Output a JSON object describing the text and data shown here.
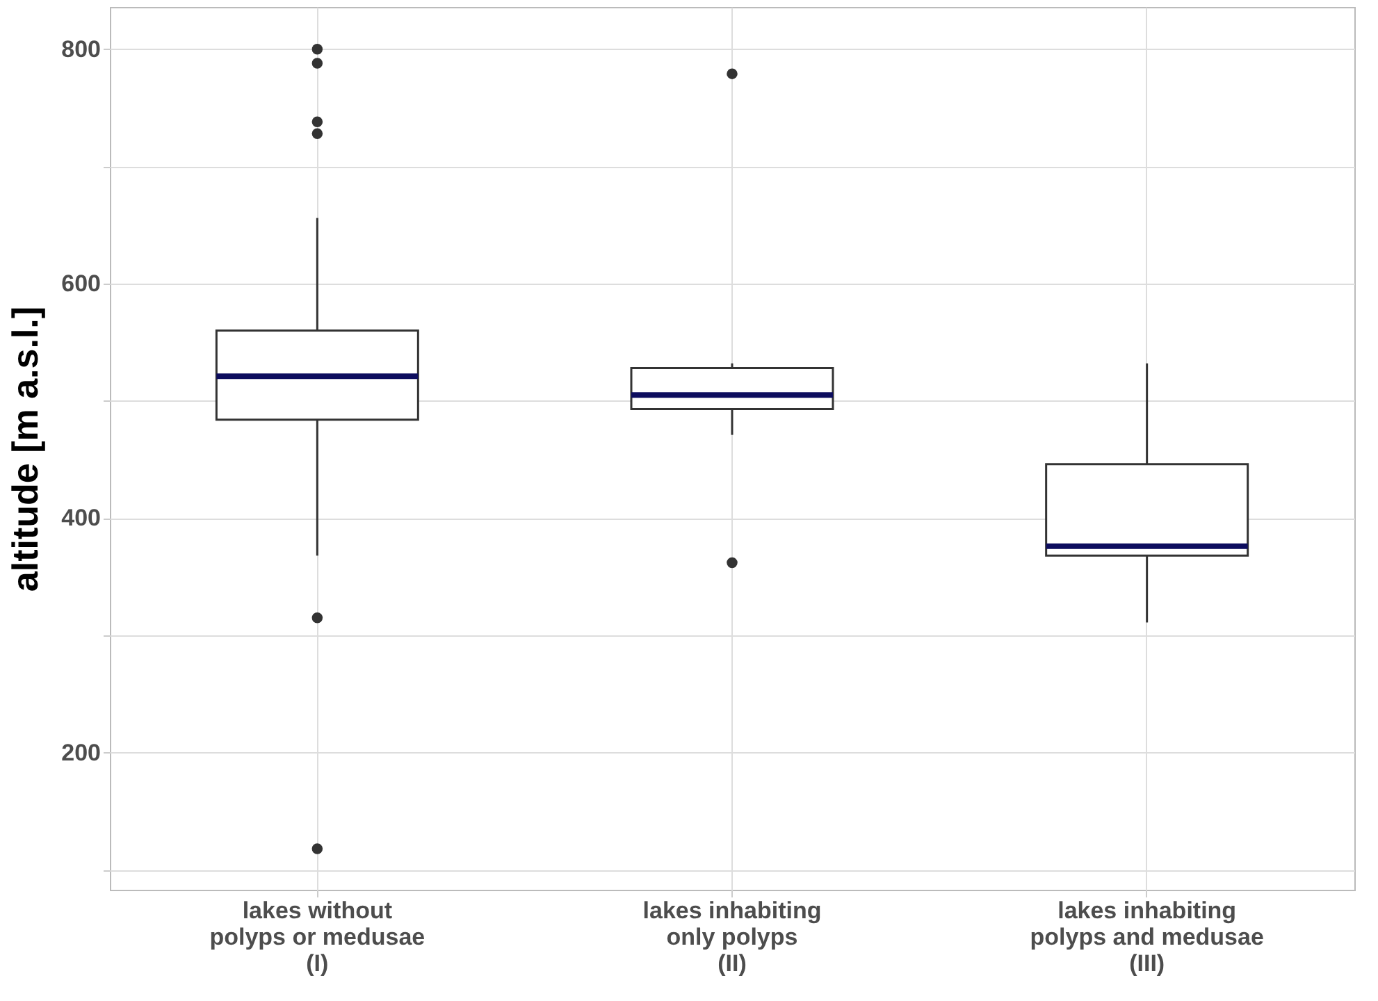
{
  "chart_data": {
    "type": "box",
    "ylabel": "altitude [m a.s.l.]",
    "categories": [
      "lakes without\npolyps or medusae\n(I)",
      "lakes inhabiting\nonly polyps\n(II)",
      "lakes inhabiting\npolyps and medusae\n(III)"
    ],
    "boxes": [
      {
        "low": 368,
        "q1": 484,
        "median": 521,
        "q3": 560,
        "high": 656,
        "outliers": [
          800,
          788,
          738,
          728,
          315,
          118
        ]
      },
      {
        "low": 471,
        "q1": 493,
        "median": 505,
        "q3": 528,
        "high": 532,
        "outliers": [
          779,
          362
        ]
      },
      {
        "low": 311,
        "q1": 368,
        "median": 376,
        "q3": 446,
        "high": 532
      }
    ],
    "color": "#ffffff",
    "ylim": [
      83,
      836
    ],
    "yticks": [
      {
        "value": 100,
        "label": null
      },
      200,
      {
        "value": 300,
        "label": null
      },
      400,
      {
        "value": 500,
        "label": null
      },
      600,
      {
        "value": 700,
        "label": null
      },
      800
    ],
    "grid": true
  }
}
